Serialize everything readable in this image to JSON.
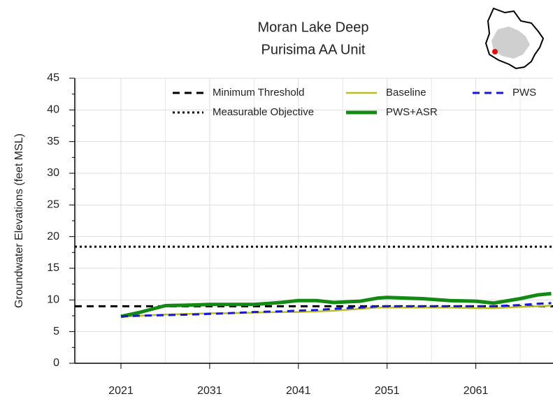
{
  "chart_data": {
    "type": "line",
    "title": "Moran Lake Deep",
    "subtitle": "Purisima AA Unit",
    "y_label": "Groundwater Elevations (feet MSL)",
    "x": [
      2021,
      2023,
      2026,
      2029,
      2031,
      2033,
      2036,
      2039,
      2041,
      2043,
      2045,
      2048,
      2050,
      2051,
      2055,
      2058,
      2061,
      2063,
      2066,
      2068,
      2069.5
    ],
    "xlim": [
      2015.8,
      2069.7
    ],
    "xticks": [
      2021,
      2031,
      2041,
      2051,
      2061
    ],
    "xminorticks": [
      2016,
      2026,
      2036,
      2046,
      2056,
      2066
    ],
    "ylim": [
      0,
      45
    ],
    "yticks": [
      0,
      5,
      10,
      15,
      20,
      25,
      30,
      35,
      40,
      45
    ],
    "yminorticks": [
      2.5,
      7.5,
      12.5,
      17.5,
      22.5,
      27.5,
      32.5,
      37.5,
      42.5
    ],
    "grid": true,
    "hlines": [
      {
        "name": "Minimum Threshold",
        "value": 9,
        "color": "#000000",
        "style": "dashed"
      },
      {
        "name": "Measurable Objective",
        "value": 18.4,
        "color": "#000000",
        "style": "dotted"
      }
    ],
    "series": [
      {
        "name": "Baseline",
        "color": "#bcbd22",
        "style": "solid",
        "width": 2.5,
        "values": [
          7.3,
          7.5,
          7.7,
          7.8,
          7.9,
          7.9,
          8.0,
          8.1,
          8.1,
          8.2,
          8.3,
          8.6,
          8.8,
          8.8,
          8.8,
          8.8,
          8.7,
          8.7,
          8.9,
          9.0,
          9.1
        ]
      },
      {
        "name": "PWS+ASR",
        "color": "#138a13",
        "style": "solid",
        "width": 5,
        "values": [
          7.4,
          8.0,
          9.1,
          9.2,
          9.3,
          9.3,
          9.3,
          9.6,
          9.9,
          9.9,
          9.6,
          9.8,
          10.3,
          10.4,
          10.2,
          9.9,
          9.8,
          9.5,
          10.2,
          10.8,
          11.0
        ]
      },
      {
        "name": "PWS",
        "color": "#1515e0",
        "style": "dashed",
        "width": 3,
        "values": [
          7.4,
          7.5,
          7.6,
          7.7,
          7.8,
          7.9,
          8.1,
          8.2,
          8.3,
          8.4,
          8.6,
          8.8,
          9.0,
          9.0,
          9.0,
          9.0,
          9.0,
          9.0,
          9.2,
          9.4,
          9.5
        ]
      }
    ]
  }
}
